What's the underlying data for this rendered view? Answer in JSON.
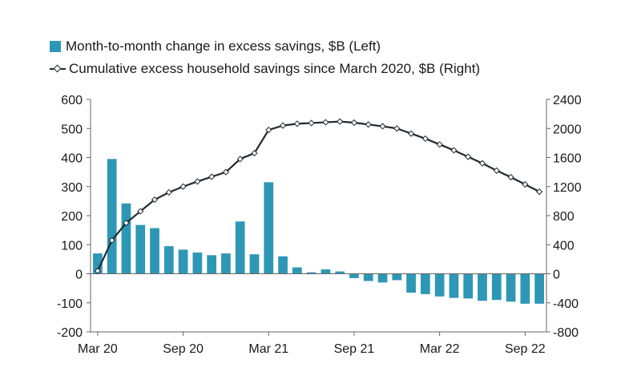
{
  "chart_data": {
    "type": "bar",
    "series": [
      {
        "name": "Month-to-month change in excess savings, $B (Left)",
        "type": "bar",
        "axis": "left",
        "color": "#2e97b5",
        "values": [
          70,
          395,
          242,
          168,
          157,
          95,
          83,
          73,
          64,
          70,
          180,
          67,
          315,
          60,
          22,
          5,
          15,
          8,
          -15,
          -25,
          -30,
          -22,
          -65,
          -70,
          -78,
          -83,
          -85,
          -93,
          -90,
          -96,
          -103,
          -103
        ]
      },
      {
        "name": "Cumulative excess household savings since March 2020, $B (Right)",
        "type": "line",
        "axis": "right",
        "color": "#1f2a30",
        "values": [
          40,
          460,
          700,
          860,
          1020,
          1120,
          1200,
          1270,
          1335,
          1400,
          1580,
          1660,
          1980,
          2040,
          2065,
          2075,
          2085,
          2095,
          2080,
          2055,
          2030,
          2000,
          1930,
          1860,
          1780,
          1700,
          1610,
          1520,
          1420,
          1330,
          1230,
          1130
        ]
      }
    ],
    "x_tick_labels": [
      "Mar 20",
      "Sep 20",
      "Mar 21",
      "Sep 21",
      "Mar 22",
      "Sep 22"
    ],
    "x_tick_indices": [
      0,
      6,
      12,
      18,
      24,
      30
    ],
    "y_left": {
      "min": -200,
      "max": 600,
      "ticks": [
        -200,
        -100,
        0,
        100,
        200,
        300,
        400,
        500,
        600
      ]
    },
    "y_right": {
      "min": -800,
      "max": 2400,
      "ticks": [
        -800,
        -400,
        0,
        400,
        800,
        1200,
        1600,
        2000,
        2400
      ]
    },
    "legend": "top-left",
    "grid": false
  }
}
